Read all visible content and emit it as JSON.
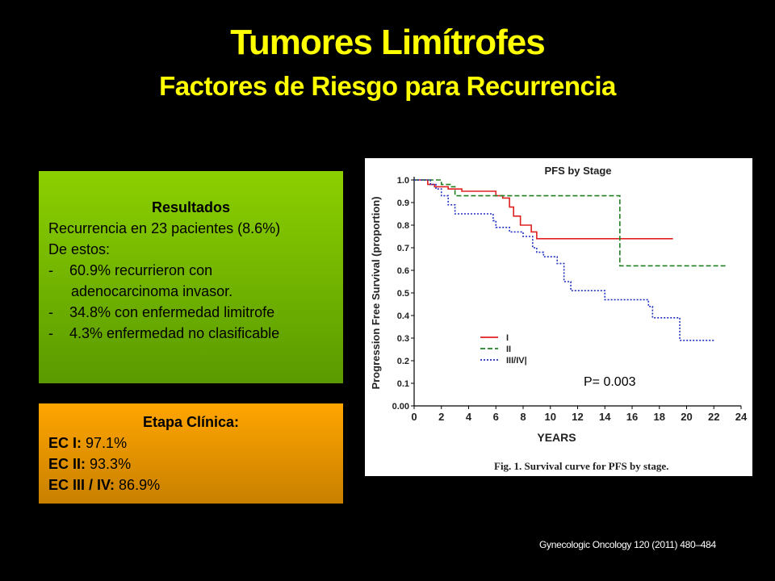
{
  "slide": {
    "title": "Tumores Limítrofes",
    "subtitle": "Factores  de Riesgo para Recurrencia",
    "citation": "Gynecologic Oncology 120 (2011) 480–484"
  },
  "results": {
    "heading": "Resultados",
    "line1": "Recurrencia en 23 pacientes (8.6%)",
    "line2": "De estos:",
    "bullets": [
      {
        "dash": "-",
        "text": "60.9% recurrieron con",
        "cont": "adenocarcinoma invasor."
      },
      {
        "dash": "-",
        "text": "34.8% con enfermedad limitrofe"
      },
      {
        "dash": "-",
        "text": "4.3% enfermedad no clasificable"
      }
    ]
  },
  "stage": {
    "heading": "Etapa Clínica:",
    "rows": [
      {
        "label": "EC I:",
        "value": "97.1%"
      },
      {
        "label": "EC II:",
        "value": "93.3%"
      },
      {
        "label": "EC III / IV:",
        "value": "86.9%"
      }
    ]
  },
  "chart_data": {
    "type": "line",
    "title": "PFS by Stage",
    "xlabel": "YEARS",
    "ylabel": "Progression Free Survival (proportion)",
    "xlim": [
      0,
      24
    ],
    "ylim": [
      0,
      1.0
    ],
    "xticks": [
      "0",
      "2",
      "4",
      "6",
      "8",
      "10",
      "12",
      "14",
      "16",
      "18",
      "20",
      "22",
      "24"
    ],
    "yticks": [
      "0.00",
      "0.1",
      "0.2",
      "0.3",
      "0.4",
      "0.5",
      "0.6",
      "0.7",
      "0.8",
      "0.9",
      "1.0"
    ],
    "annotation": "P= 0.003",
    "caption": "Fig. 1. Survival curve for PFS by stage.",
    "series": [
      {
        "name": "I",
        "color": "#e02020",
        "dash": "solid",
        "x": [
          0,
          0.8,
          1.0,
          1.5,
          2.0,
          2.5,
          3.0,
          3.5,
          5.0,
          6.0,
          6.5,
          7.0,
          7.3,
          7.8,
          8.2,
          8.6,
          9.0,
          10.0,
          16.0,
          19.0
        ],
        "y": [
          1.0,
          1.0,
          0.98,
          0.97,
          0.97,
          0.96,
          0.96,
          0.95,
          0.95,
          0.93,
          0.92,
          0.88,
          0.84,
          0.8,
          0.8,
          0.77,
          0.74,
          0.74,
          0.74,
          0.74
        ]
      },
      {
        "name": "II",
        "color": "#208020",
        "dash": "dashed",
        "x": [
          0,
          1.5,
          2.0,
          2.7,
          3.0,
          15.0,
          15.1,
          23.0
        ],
        "y": [
          1.0,
          1.0,
          0.98,
          0.97,
          0.93,
          0.93,
          0.62,
          0.62
        ]
      },
      {
        "name": "III/IV|",
        "color": "#2030c0",
        "dash": "dotted",
        "x": [
          0,
          1.2,
          1.6,
          2.0,
          2.5,
          3.0,
          5.0,
          5.8,
          6.0,
          7.0,
          8.0,
          8.7,
          9.0,
          9.5,
          10.0,
          10.5,
          11.0,
          11.5,
          13.0,
          14.0,
          16.0,
          17.2,
          17.5,
          19.0,
          19.5,
          22.0
        ],
        "y": [
          1.0,
          0.98,
          0.96,
          0.93,
          0.89,
          0.85,
          0.85,
          0.82,
          0.79,
          0.77,
          0.75,
          0.7,
          0.68,
          0.66,
          0.66,
          0.63,
          0.55,
          0.51,
          0.51,
          0.47,
          0.47,
          0.44,
          0.39,
          0.39,
          0.29,
          0.29
        ]
      }
    ]
  }
}
